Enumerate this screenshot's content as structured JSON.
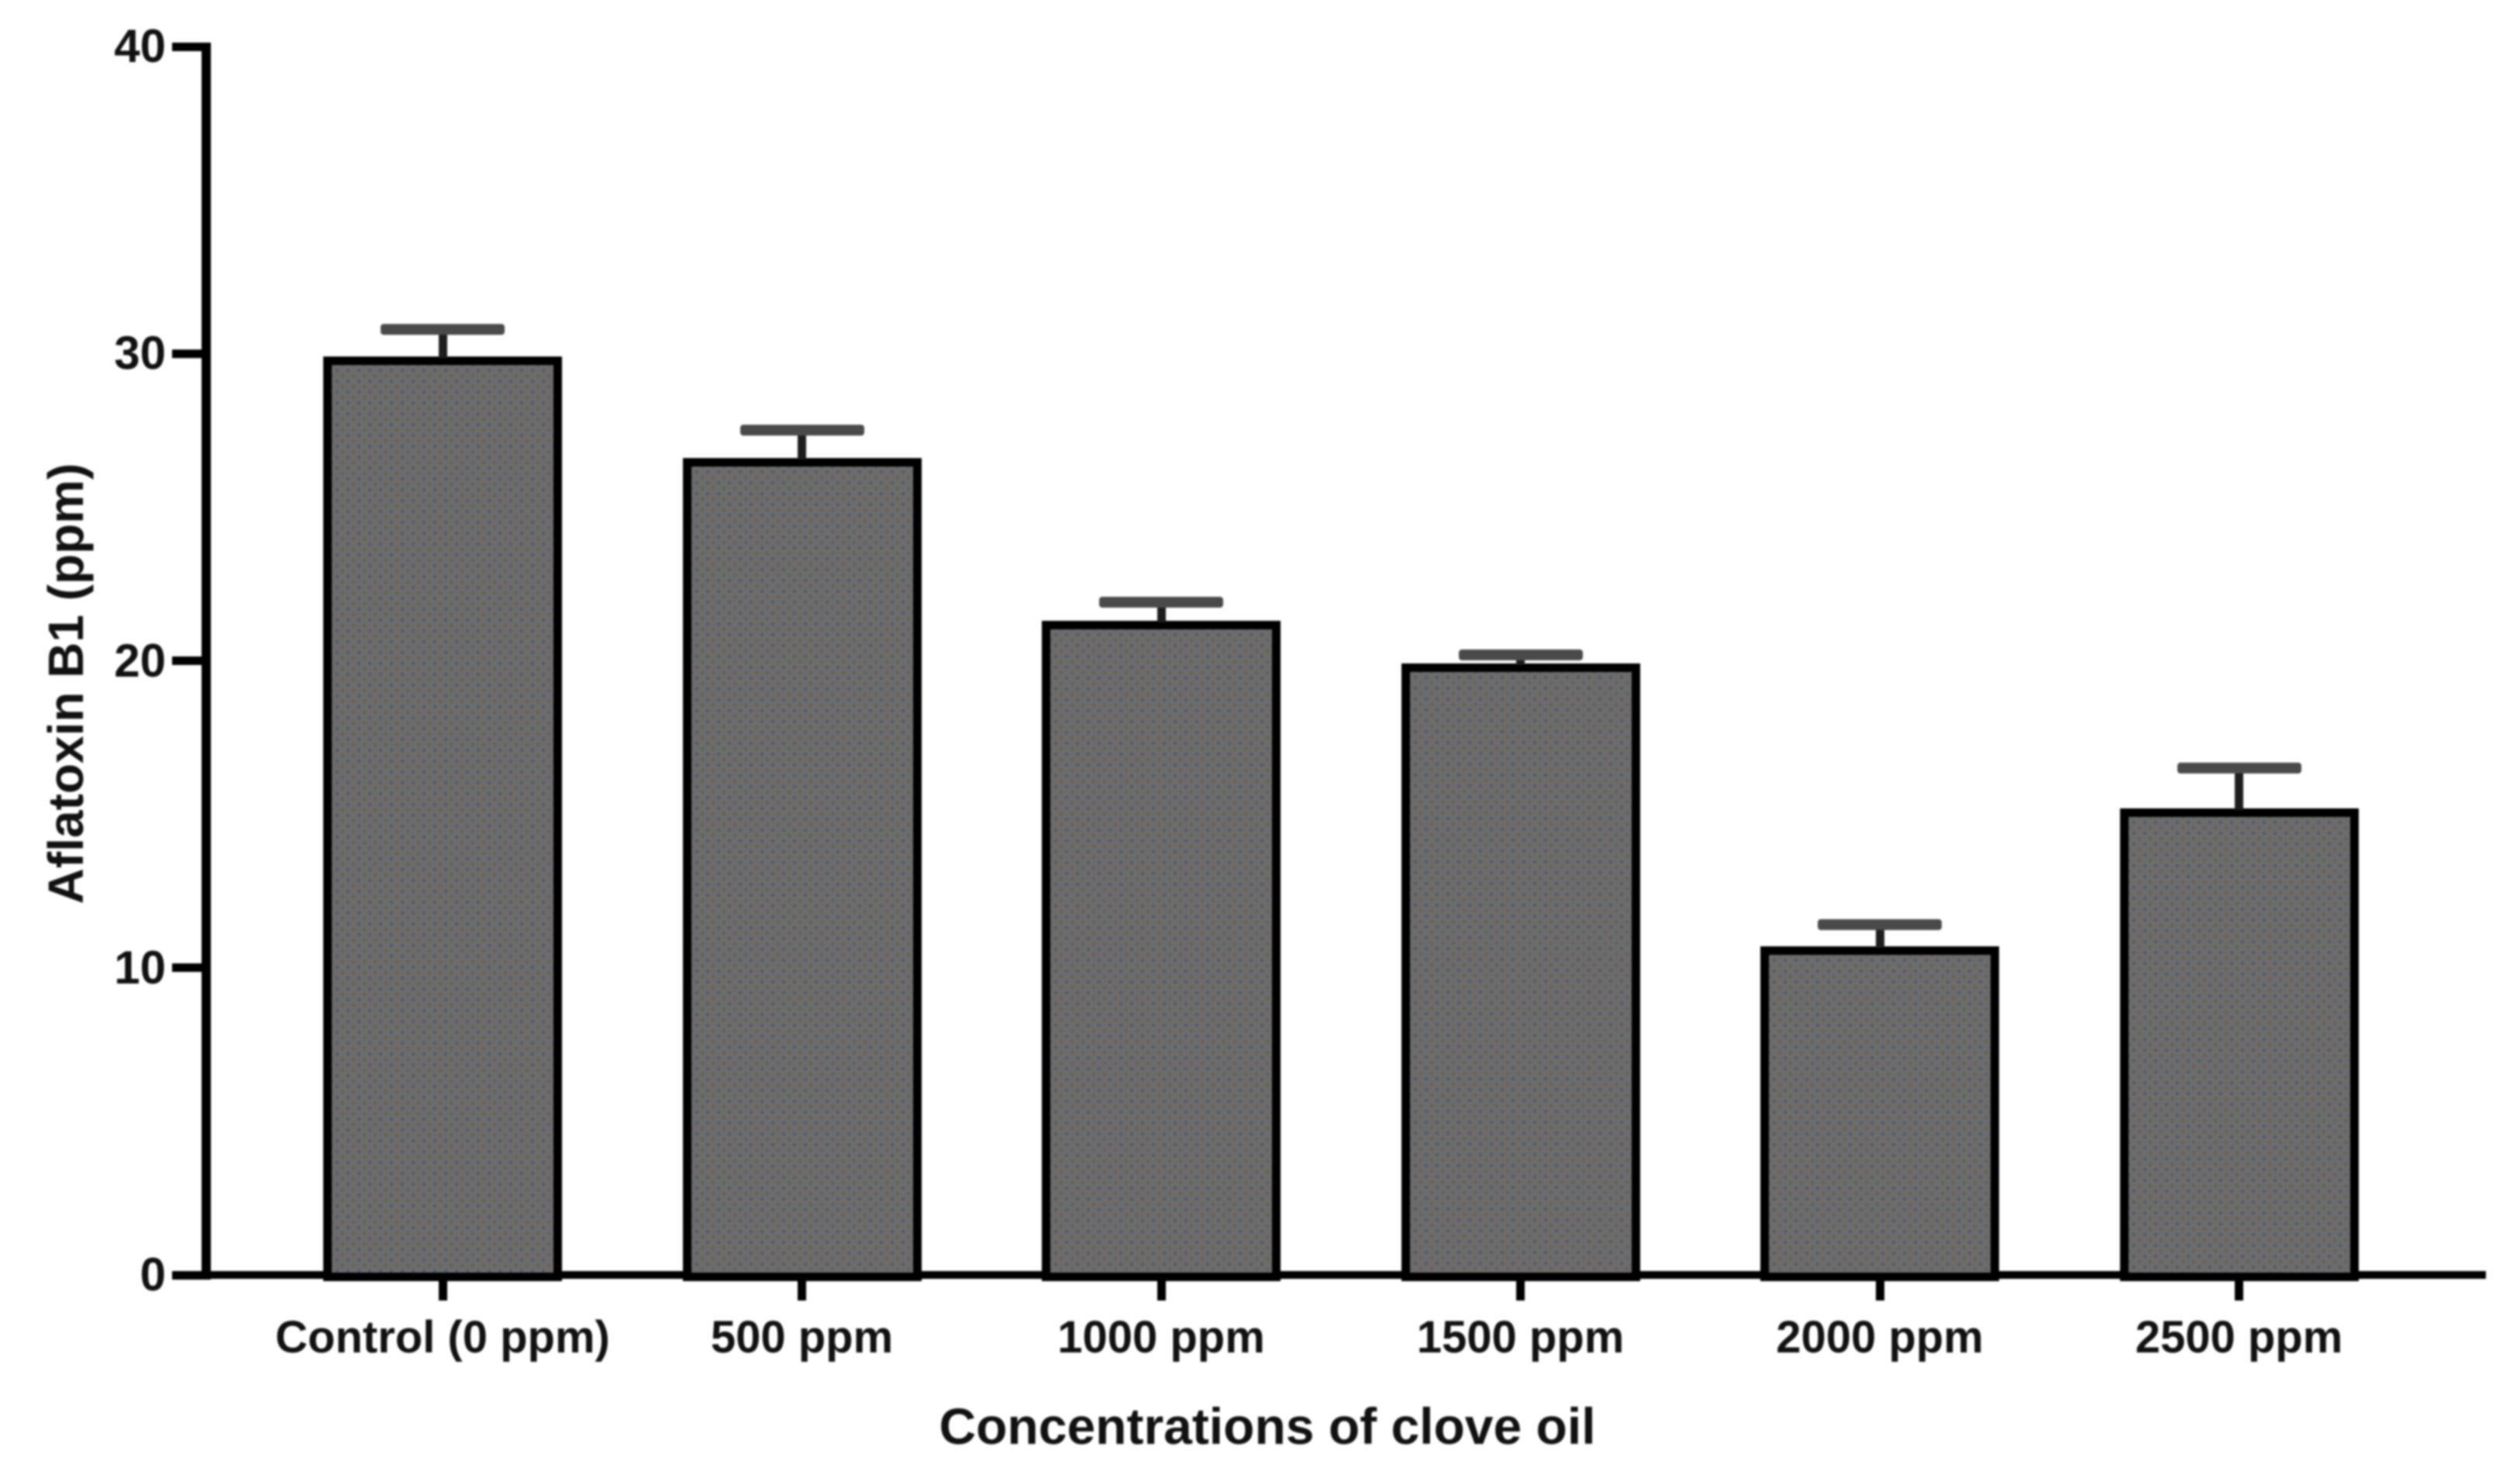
{
  "figure": {
    "background_color": "#ffffff",
    "text_color": "#111111"
  },
  "chart_data": {
    "type": "bar",
    "title": "",
    "xlabel": "Concentrations of clove oil",
    "ylabel": "Aflatoxin B1 (ppm)",
    "categories": [
      "Control (0 ppm)",
      "500 ppm",
      "1000 ppm",
      "1500 ppm",
      "2000 ppm",
      "2500 ppm"
    ],
    "values": [
      29.9,
      26.6,
      21.3,
      19.9,
      10.7,
      15.2
    ],
    "errors": [
      0.9,
      0.9,
      0.6,
      0.3,
      0.7,
      1.3
    ],
    "error_bar_style": "upper cap only",
    "ylim": [
      0,
      40
    ],
    "yticks": [
      0,
      10,
      20,
      30,
      40
    ],
    "grid": false,
    "legend": "none",
    "bar_fill_color": "#6c6c6c",
    "bar_texture": "fine stipple dots",
    "bar_border_color": "#000000",
    "error_cap_color": "#4a4a4a",
    "axis_color": "#000000"
  }
}
